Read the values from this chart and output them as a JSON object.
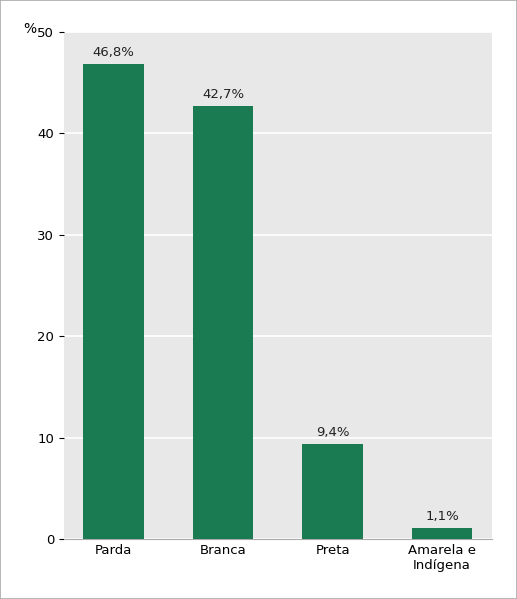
{
  "categories": [
    "Parda",
    "Branca",
    "Preta",
    "Amarela e\nIndígena"
  ],
  "values": [
    46.8,
    42.7,
    9.4,
    1.1
  ],
  "labels": [
    "46,8%",
    "42,7%",
    "9,4%",
    "1,1%"
  ],
  "bar_color": "#1a7a52",
  "plot_bg_color": "#e8e8e8",
  "outer_bg_color": "#ffffff",
  "ylabel": "%",
  "ylim": [
    0,
    50
  ],
  "yticks": [
    0,
    10,
    20,
    30,
    40,
    50
  ],
  "bar_width": 0.55,
  "label_fontsize": 9.5,
  "tick_fontsize": 9.5,
  "ylabel_fontsize": 10,
  "grid_color": "#ffffff",
  "border_color": "#aaaaaa"
}
